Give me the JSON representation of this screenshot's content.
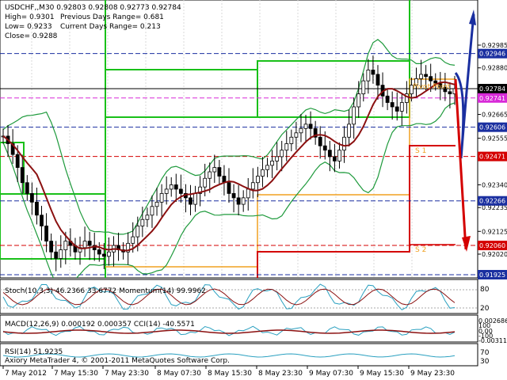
{
  "symbol_header": "USDCHF,,M30  0.92803 0.92808 0.92773 0.92784",
  "info": {
    "high": "High= 0.9301",
    "low": "Low= 0.9233",
    "close": "Close= 0.9288",
    "prev_range": "Previous Days Range= 0.681",
    "cur_range": "Current Days Range= 0.213"
  },
  "price_axis": {
    "ticks": [
      "0.92985",
      "0.92880",
      "0.92665",
      "0.92555",
      "0.92340",
      "0.92235",
      "0.92125",
      "0.92020"
    ],
    "tick_values": [
      0.92985,
      0.9288,
      0.92665,
      0.92555,
      0.9234,
      0.92235,
      0.92125,
      0.9202
    ]
  },
  "levels": [
    {
      "label": "0.92946",
      "value": 0.92946,
      "color": "#1a2fa0"
    },
    {
      "label": "0.92784",
      "value": 0.92784,
      "color": "#000000"
    },
    {
      "label": "0.92741",
      "value": 0.92741,
      "color": "#d82ad8"
    },
    {
      "label": "0.92606",
      "value": 0.92606,
      "color": "#1a2fa0"
    },
    {
      "label": "0.92471",
      "value": 0.92471,
      "color": "#d40000"
    },
    {
      "label": "0.92266",
      "value": 0.92266,
      "color": "#1a2fa0"
    },
    {
      "label": "0.92060",
      "value": 0.9206,
      "color": "#d40000"
    },
    {
      "label": "0.91925",
      "value": 0.91925,
      "color": "#1a2fa0"
    }
  ],
  "pivot_labels": {
    "pivot": "Pivot Point",
    "s1": "S 1",
    "s2": "S 2"
  },
  "subwindows": {
    "stoch": "Stoch(10,3,3) 46.2366 33.6772  Momentum(14) 99.9962",
    "macd": "MACD(12,26,9) 0.000192 0.000357  CCI(14) -40.5571",
    "rsi": "RSI(14) 51.9235"
  },
  "sub_scales": {
    "stoch": [
      "80",
      "20"
    ],
    "macd": [
      "0.002686",
      "100",
      "0.00",
      "-100",
      "-0.003111"
    ],
    "rsi": [
      "70",
      "30"
    ]
  },
  "copyright": "Axiory MetaTrader 4, © 2001-2011 MetaQuotes Software Corp.",
  "time_axis": [
    "7 May 2012",
    "7 May 15:30",
    "7 May 23:30",
    "8 May 07:30",
    "8 May 15:30",
    "8 May 23:30",
    "9 May 07:30",
    "9 May 15:30",
    "9 May 23:30"
  ],
  "colors": {
    "bollinger": "#1e9a3c",
    "ma": "#8b1010",
    "up_arrow": "#1a2fa0",
    "down_arrow": "#d40000",
    "stoch_main": "#2aa0c0",
    "stoch_signal": "#8b1010",
    "pivot_orange": "#f0a020",
    "zone_green": "#19c019"
  },
  "chart_data": {
    "type": "candlestick",
    "symbol": "USDCHF",
    "timeframe": "M30",
    "ohlc_last": {
      "open": 0.92803,
      "high": 0.92808,
      "low": 0.92773,
      "close": 0.92784
    },
    "close_series": [
      0.92565,
      0.9253,
      0.9248,
      0.9242,
      0.9235,
      0.923,
      0.9226,
      0.922,
      0.9215,
      0.9208,
      0.9203,
      0.92,
      0.9204,
      0.9208,
      0.9206,
      0.9203,
      0.9205,
      0.9208,
      0.9206,
      0.9204,
      0.9202,
      0.9201,
      0.9203,
      0.9206,
      0.9204,
      0.9203,
      0.9207,
      0.921,
      0.9215,
      0.9218,
      0.922,
      0.9224,
      0.9226,
      0.923,
      0.9232,
      0.9234,
      0.9232,
      0.923,
      0.9228,
      0.9225,
      0.923,
      0.9233,
      0.9237,
      0.924,
      0.9242,
      0.9238,
      0.9235,
      0.923,
      0.9228,
      0.9225,
      0.9228,
      0.9232,
      0.9235,
      0.9238,
      0.9241,
      0.9243,
      0.9245,
      0.9247,
      0.925,
      0.9253,
      0.9256,
      0.9258,
      0.926,
      0.9262,
      0.926,
      0.9256,
      0.9252,
      0.925,
      0.9247,
      0.9245,
      0.925,
      0.9256,
      0.9262,
      0.927,
      0.9276,
      0.9282,
      0.9287,
      0.9285,
      0.928,
      0.9275,
      0.9272,
      0.927,
      0.9268,
      0.9272,
      0.9276,
      0.928,
      0.9283,
      0.9285,
      0.9284,
      0.9282,
      0.9281,
      0.9279,
      0.9277,
      0.9276,
      0.92784
    ]
  }
}
